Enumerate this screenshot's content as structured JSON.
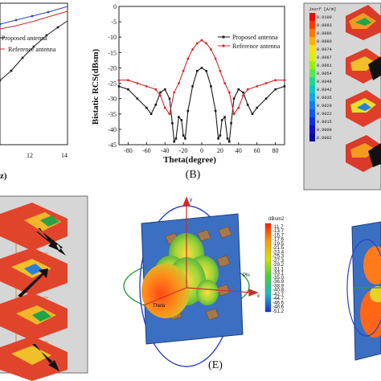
{
  "chart_data": [
    {
      "type": "line",
      "panel": "A (cropped)",
      "xlabel": "z)",
      "x_ticks": [
        "12",
        "14"
      ],
      "series": [
        {
          "name": "Proposed antenna",
          "color": "#1a1a1a",
          "marker": "square"
        },
        {
          "name": "Reference antenna",
          "color": "#d22b2b",
          "marker": "circle"
        }
      ]
    },
    {
      "type": "line",
      "panel": "B",
      "title_label": "(B)",
      "xlabel": "Theta(degree)",
      "ylabel": "Bistatic RCS(dBsm)",
      "xlim": [
        -90,
        90
      ],
      "ylim": [
        -45,
        0
      ],
      "x_ticks": [
        -80,
        -60,
        -40,
        -20,
        0,
        20,
        40,
        60,
        80
      ],
      "y_ticks": [
        -45,
        -40,
        -35,
        -30,
        -25,
        -20,
        -15,
        -10,
        -5,
        0
      ],
      "legend_position": "top-right",
      "series": [
        {
          "name": "Proposed antenna",
          "color": "#1a1a1a",
          "x": [
            -90,
            -80,
            -70,
            -60,
            -55,
            -50,
            -45,
            -40,
            -35,
            -32,
            -30,
            -28,
            -25,
            -22,
            -20,
            -18,
            -15,
            -10,
            -5,
            0,
            5,
            10,
            15,
            18,
            20,
            22,
            25,
            28,
            30,
            32,
            35,
            40,
            45,
            50,
            55,
            60,
            70,
            80,
            90
          ],
          "y": [
            -26,
            -27,
            -30,
            -33,
            -35,
            -32,
            -28,
            -27,
            -30,
            -38,
            -44,
            -43,
            -36,
            -37,
            -42,
            -43,
            -34,
            -26,
            -21,
            -20,
            -21,
            -26,
            -34,
            -43,
            -42,
            -37,
            -36,
            -43,
            -44,
            -38,
            -30,
            -27,
            -28,
            -32,
            -35,
            -33,
            -30,
            -27,
            -26
          ]
        },
        {
          "name": "Reference antenna",
          "color": "#d22b2b",
          "x": [
            -90,
            -80,
            -70,
            -60,
            -50,
            -45,
            -40,
            -35,
            -30,
            -25,
            -20,
            -15,
            -10,
            -5,
            0,
            5,
            10,
            15,
            20,
            25,
            30,
            35,
            40,
            45,
            50,
            60,
            70,
            80,
            90
          ],
          "y": [
            -24,
            -24,
            -25,
            -26,
            -27,
            -29,
            -33,
            -35,
            -28,
            -25,
            -21,
            -17,
            -14,
            -12,
            -11,
            -12,
            -14,
            -17,
            -21,
            -25,
            -28,
            -35,
            -33,
            -29,
            -27,
            -26,
            -25,
            -24,
            -24
          ]
        }
      ]
    },
    {
      "type": "heatmap",
      "panel": "C (cropped)",
      "colorbar_title": "Jsurf [A/m]",
      "colorbar_values": [
        "0.0100",
        "0.0093",
        "0.0086",
        "0.0080",
        "0.0074",
        "0.0067",
        "0.0061",
        "0.0054",
        "0.0048",
        "0.0042",
        "0.0035",
        "0.0029",
        "0.0022",
        "0.0015",
        "0.0009",
        "0.0002"
      ]
    },
    {
      "type": "heatmap",
      "panel": "E",
      "title_label": "(E)",
      "colorbar_title": "dBsm2",
      "colorbar_values": [
        "-11.7",
        "-13.7",
        "-15.7",
        "-17.6",
        "-19.5",
        "-21.5",
        "-23.4",
        "-25.3",
        "-27.3",
        "-29.2",
        "-31.1",
        "-33.1",
        "-35.0",
        "-36.9",
        "-38.9",
        "-40.8",
        "-42.7",
        "-44.7",
        "-46.6",
        "-48.6",
        "-51.2"
      ],
      "axis_labels": {
        "y": "y",
        "x": "x",
        "phi": "Phi",
        "theta": "Theta"
      }
    }
  ]
}
